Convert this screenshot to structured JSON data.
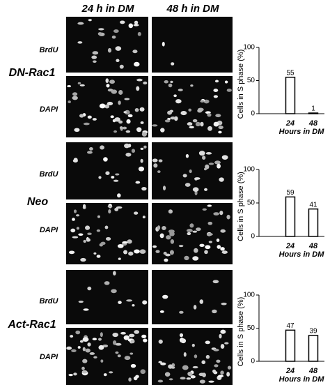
{
  "figure": {
    "columns": [
      "24 h in DM",
      "48 h in DM"
    ],
    "groups": [
      {
        "label": "DN-Rac1",
        "stains": [
          "BrdU",
          "DAPI"
        ]
      },
      {
        "label": "Neo",
        "stains": [
          "BrdU",
          "DAPI"
        ]
      },
      {
        "label": "Act-Rac1",
        "stains": [
          "BrdU",
          "DAPI"
        ]
      }
    ]
  },
  "chart_data": [
    {
      "type": "bar",
      "categories": [
        "24",
        "48"
      ],
      "values": [
        55,
        1
      ],
      "color": "#ffffff",
      "edge_color": "#000000",
      "xlabel": "Hours in DM",
      "ylabel": "Cells in S phase (%)",
      "ylim": [
        0,
        100
      ],
      "yticks": [
        0,
        50,
        100
      ]
    },
    {
      "type": "bar",
      "categories": [
        "24",
        "48"
      ],
      "values": [
        59,
        41
      ],
      "color": "#ffffff",
      "edge_color": "#000000",
      "xlabel": "Hours in DM",
      "ylabel": "Cells in S phase (%)",
      "ylim": [
        0,
        100
      ],
      "yticks": [
        0,
        50,
        100
      ]
    },
    {
      "type": "bar",
      "categories": [
        "24",
        "48"
      ],
      "values": [
        47,
        39
      ],
      "color": "#ffffff",
      "edge_color": "#000000",
      "xlabel": "Hours in DM",
      "ylabel": "Cells in S phase (%)",
      "ylim": [
        0,
        100
      ],
      "yticks": [
        0,
        50,
        100
      ]
    }
  ]
}
